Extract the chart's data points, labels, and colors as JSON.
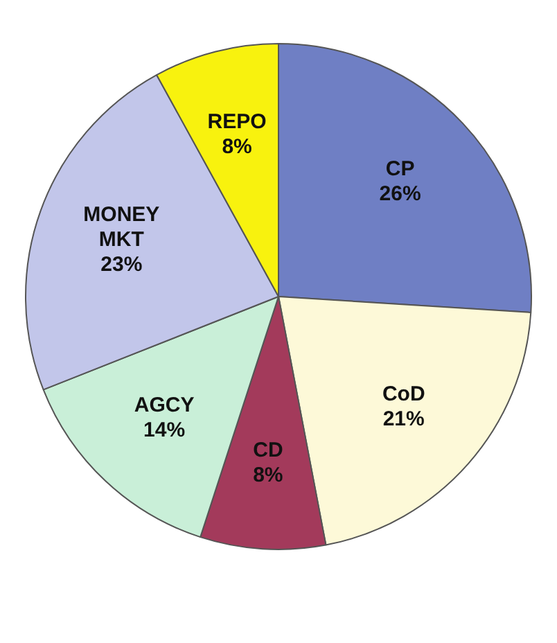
{
  "chart_data": {
    "type": "pie",
    "categories": [
      "CP",
      "CoD",
      "CD",
      "AGCY",
      "MONEY MKT",
      "REPO"
    ],
    "values": [
      26,
      21,
      8,
      14,
      23,
      8
    ],
    "colors": [
      "#6f7fc4",
      "#fdf9d8",
      "#a33a5b",
      "#c9efd8",
      "#c2c6ea",
      "#f8f20e"
    ],
    "value_labels": [
      "26%",
      "21%",
      "8%",
      "14%",
      "23%",
      "8%"
    ],
    "legend": false
  }
}
